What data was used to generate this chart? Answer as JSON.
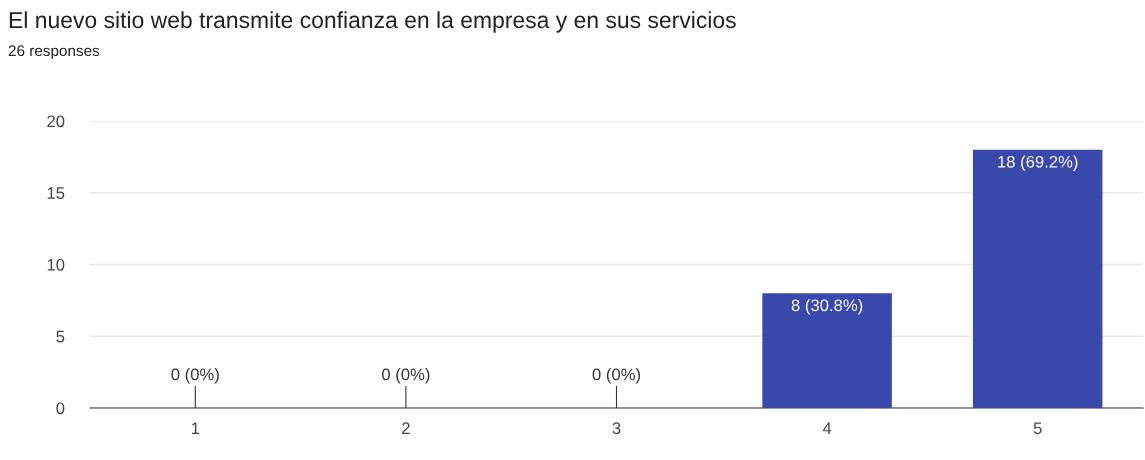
{
  "chart_data": {
    "type": "bar",
    "title": "El nuevo sitio web transmite confianza en la empresa y en sus servicios",
    "subtitle": "26 responses",
    "categories": [
      "1",
      "2",
      "3",
      "4",
      "5"
    ],
    "values": [
      0,
      0,
      0,
      8,
      18
    ],
    "value_labels": [
      "0 (0%)",
      "0 (0%)",
      "0 (0%)",
      "8 (30.8%)",
      "18 (69.2%)"
    ],
    "color": "#3949ab",
    "ylim": [
      0,
      20
    ],
    "yticks": [
      0,
      5,
      10,
      15,
      20
    ],
    "grid": "y"
  }
}
